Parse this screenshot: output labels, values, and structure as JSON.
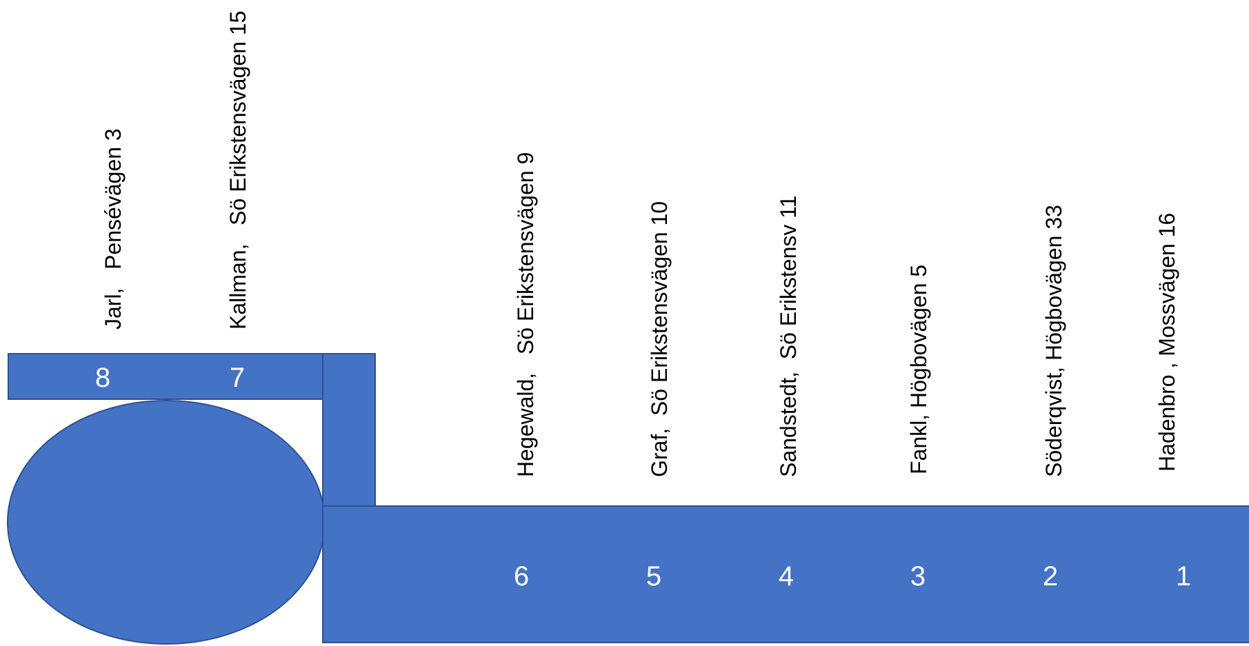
{
  "colors": {
    "fill": "#4472C4",
    "stroke": "#2F528F",
    "number_text": "#FFFFFF",
    "label_text": "#000000"
  },
  "lots": [
    {
      "number": "8",
      "label": "Jarl,   Pensévägen 3"
    },
    {
      "number": "7",
      "label": "Kallman,   Sö Erikstensvägen 15"
    },
    {
      "number": "6",
      "label": "Hegewald,   Sö Erikstensvägen 9"
    },
    {
      "number": "5",
      "label": "Graf,  Sö Erikstensvägen 10"
    },
    {
      "number": "4",
      "label": "Sandstedt,  Sö Erikstensv 11"
    },
    {
      "number": "3",
      "label": "Fankl, Högbovägen 5"
    },
    {
      "number": "2",
      "label": "Söderqvist, Högbovägen 33"
    },
    {
      "number": "1",
      "label": "Hadenbro , Mossvägen 16"
    }
  ]
}
